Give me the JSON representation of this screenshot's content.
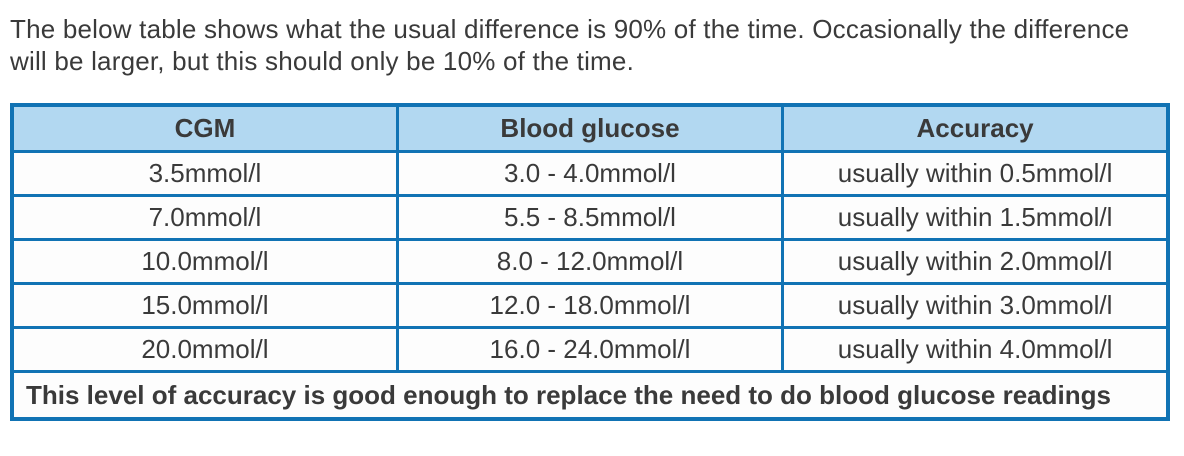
{
  "intro": {
    "text": "The below table shows what the usual difference is 90% of the time. Occasionally the difference will be larger, but this should only be 10% of the time."
  },
  "table": {
    "headers": [
      "CGM",
      "Blood glucose",
      "Accuracy"
    ],
    "rows": [
      [
        "3.5mmol/l",
        "3.0 - 4.0mmol/l",
        "usually within 0.5mmol/l"
      ],
      [
        "7.0mmol/l",
        "5.5 - 8.5mmol/l",
        "usually within 1.5mmol/l"
      ],
      [
        "10.0mmol/l",
        "8.0 - 12.0mmol/l",
        "usually within 2.0mmol/l"
      ],
      [
        "15.0mmol/l",
        "12.0 - 18.0mmol/l",
        "usually within 3.0mmol/l"
      ],
      [
        "20.0mmol/l",
        "16.0 - 24.0mmol/l",
        "usually within 4.0mmol/l"
      ]
    ],
    "footer_note": "This level of accuracy is good enough to replace the need to do blood glucose readings"
  },
  "colors": {
    "border_blue": "#1173b4",
    "header_fill": "#b2d8f1",
    "text_dark": "#3a3a3a"
  }
}
